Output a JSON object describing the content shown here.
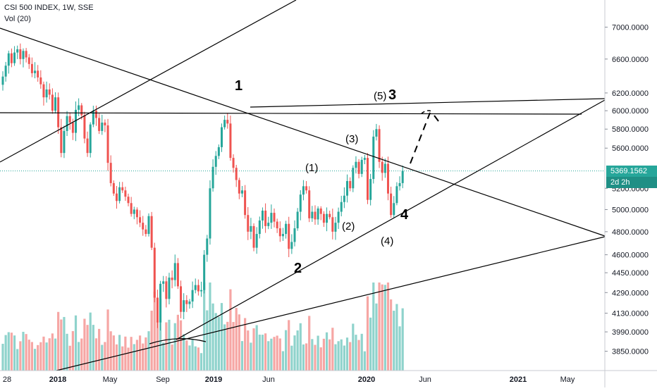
{
  "header": {
    "symbol_line": "CSI 500 INDEX, 1W, SSE",
    "volume_label": "Vol (20)"
  },
  "price_tag": {
    "price": "5369.1562",
    "countdown": "2d 2h"
  },
  "colors": {
    "up": "#26a69a",
    "down": "#ef5350",
    "up_vol": "#8fd3cc",
    "down_vol": "#f6a6a4",
    "price_line": "#26a69a",
    "price_tag_bg": "#26a69a",
    "countdown_bg": "#1f8f85"
  },
  "chart_data": {
    "type": "candlestick",
    "scale": "log",
    "ylim": [
      3720,
      7350
    ],
    "y_ticks": [
      "7000.0000",
      "6600.0000",
      "6200.0000",
      "6000.0000",
      "5800.0000",
      "5600.0000",
      "5200.0000",
      "5000.0000",
      "4800.0000",
      "4600.0000",
      "4450.0000",
      "4290.0000",
      "4130.0000",
      "3990.0000",
      "3850.0000"
    ],
    "x_ticks": [
      "28",
      "2018",
      "May",
      "Sep",
      "2019",
      "Jun",
      "2020",
      "Jun",
      "2021",
      "May"
    ],
    "annotations": [
      "1",
      "2",
      "(5)",
      "3",
      "(3)",
      "(1)",
      "(2)",
      "(4)",
      "4"
    ],
    "series_closes": [
      6390,
      6520,
      6670,
      6550,
      6680,
      6720,
      6600,
      6700,
      6620,
      6540,
      6430,
      6460,
      6380,
      6300,
      6150,
      6240,
      6180,
      6000,
      6150,
      5820,
      5550,
      5780,
      5940,
      5870,
      5760,
      6010,
      6060,
      5950,
      5700,
      5550,
      5850,
      6000,
      5920,
      5780,
      5870,
      5840,
      5450,
      5250,
      5150,
      5080,
      5210,
      5180,
      5120,
      5060,
      4960,
      5000,
      4930,
      4880,
      4820,
      4780,
      4940,
      4660,
      4250,
      4060,
      4360,
      4380,
      4240,
      4410,
      4390,
      4530,
      4340,
      4140,
      4230,
      4200,
      4220,
      4310,
      4350,
      4300,
      4310,
      4600,
      4740,
      5200,
      5410,
      5520,
      5610,
      5820,
      5900,
      5860,
      5500,
      5400,
      5280,
      5150,
      5180,
      4950,
      4800,
      4850,
      4660,
      4780,
      4900,
      4990,
      4850,
      4880,
      4970,
      4890,
      4830,
      4760,
      4780,
      4870,
      4650,
      4710,
      4830,
      4980,
      5140,
      5220,
      5180,
      4920,
      4980,
      4910,
      5010,
      4960,
      4880,
      4960,
      4930,
      4800,
      4880,
      4980,
      5070,
      5130,
      5270,
      5200,
      5400,
      5460,
      5340,
      5480,
      5500,
      5090,
      5290,
      5720,
      5800,
      5460,
      5350,
      5440,
      5150,
      4950,
      5060,
      5220,
      5250,
      5369
    ]
  }
}
